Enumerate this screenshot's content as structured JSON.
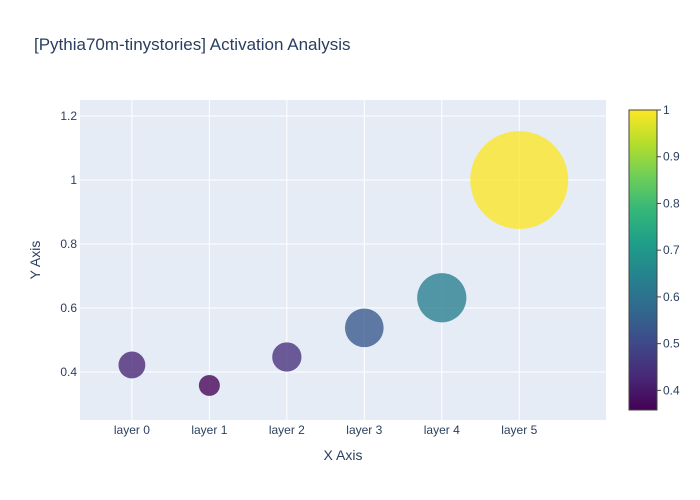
{
  "chart_data": {
    "type": "scatter",
    "title": "[Pythia70m-tinystories] Activation Analysis",
    "xlabel": "X Axis",
    "ylabel": "Y Axis",
    "categories": [
      "layer 0",
      "layer 1",
      "layer 2",
      "layer 3",
      "layer 4",
      "layer 5"
    ],
    "values": [
      0.422,
      0.358,
      0.447,
      0.538,
      0.632,
      1.0
    ],
    "ylim": [
      0.25,
      1.25
    ],
    "yticks": [
      0.4,
      0.6,
      0.8,
      1,
      1.2
    ],
    "colorscale": "viridis",
    "colorbar": {
      "range": [
        0.358,
        1.0
      ],
      "ticks": [
        0.4,
        0.5,
        0.6,
        0.7,
        0.8,
        0.9,
        1
      ]
    },
    "grid": true,
    "legend": "none"
  },
  "colors": {
    "plot_background": "#e5ecf6",
    "gridline": "#ffffff",
    "text": "#2a3f5f"
  }
}
